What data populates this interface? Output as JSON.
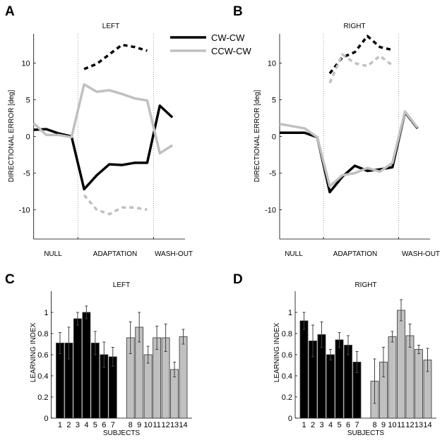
{
  "colors": {
    "cw": "#000000",
    "ccw": "#c0c0c0"
  },
  "chart_data": [
    {
      "type": "line",
      "panel_label": "A",
      "title": "LEFT",
      "ylabel": "DIRECTIONAL ERROR [deg]",
      "ylim": [
        -14,
        14
      ],
      "yticks": [
        -10,
        -5,
        0,
        5,
        10
      ],
      "xlim": [
        1,
        13
      ],
      "phase_boundaries": [
        4.5,
        10.5
      ],
      "phase_labels": [
        "NULL",
        "ADAPTATION",
        "WASH-OUT"
      ],
      "legend": [
        "CW-CW",
        "CCW-CW"
      ],
      "legend_position": "top-right",
      "series": [
        {
          "name": "CW-CW",
          "style": "solid",
          "x": [
            1,
            2,
            3,
            4,
            5,
            6,
            7,
            8,
            9,
            10,
            11,
            12
          ],
          "values": [
            0.9,
            1.0,
            0.4,
            0.0,
            -7.2,
            -5.3,
            -3.8,
            -3.9,
            -3.6,
            -3.6,
            4.2,
            2.6
          ]
        },
        {
          "name": "CCW-CW",
          "style": "solid",
          "x": [
            1,
            2,
            3,
            4,
            5,
            6,
            7,
            8,
            9,
            10,
            11,
            12
          ],
          "values": [
            1.8,
            0.2,
            0.2,
            -0.1,
            7.1,
            6.1,
            6.3,
            5.8,
            5.2,
            4.9,
            -2.3,
            -1.2
          ]
        },
        {
          "name": "CW-CW",
          "style": "dashed",
          "x": [
            5,
            6,
            7,
            8,
            9,
            10
          ],
          "values": [
            9.2,
            9.9,
            11.2,
            12.5,
            12.2,
            11.7
          ]
        },
        {
          "name": "CCW-CW",
          "style": "dashed",
          "x": [
            5,
            6,
            7,
            8,
            9,
            10
          ],
          "values": [
            -8.0,
            -10.0,
            -10.6,
            -9.7,
            -9.7,
            -10.0
          ]
        }
      ]
    },
    {
      "type": "line",
      "panel_label": "B",
      "title": "RIGHT",
      "ylabel": "DIRECTIONAL ERROR [deg]",
      "ylim": [
        -14,
        14
      ],
      "yticks": [
        -10,
        -5,
        0,
        5,
        10
      ],
      "xlim": [
        1,
        13
      ],
      "phase_boundaries": [
        4.5,
        10.5
      ],
      "phase_labels": [
        "NULL",
        "ADAPTATION",
        "WASH-OUT"
      ],
      "series": [
        {
          "name": "CW-CW",
          "style": "solid",
          "x": [
            1,
            2,
            3,
            4,
            5,
            6,
            7,
            8,
            9,
            10,
            11,
            12
          ],
          "values": [
            0.5,
            0.5,
            0.5,
            -0.1,
            -7.6,
            -5.5,
            -4.0,
            -4.7,
            -4.5,
            -4.2,
            3.3,
            1.1
          ]
        },
        {
          "name": "CCW-CW",
          "style": "solid",
          "x": [
            1,
            2,
            3,
            4,
            5,
            6,
            7,
            8,
            9,
            10,
            11,
            12
          ],
          "values": [
            1.7,
            1.4,
            1.1,
            -0.1,
            -6.8,
            -5.3,
            -5.0,
            -4.3,
            -4.8,
            -3.6,
            3.4,
            1.2
          ]
        },
        {
          "name": "CW-CW",
          "style": "dashed",
          "x": [
            5,
            6,
            7,
            8,
            9,
            10
          ],
          "values": [
            8.6,
            10.8,
            11.5,
            13.7,
            12.2,
            11.8
          ]
        },
        {
          "name": "CCW-CW",
          "style": "dashed",
          "x": [
            5,
            6,
            7,
            8,
            9,
            10
          ],
          "values": [
            7.3,
            11.2,
            10.0,
            9.6,
            11.0,
            9.7
          ]
        }
      ]
    },
    {
      "type": "bar",
      "panel_label": "C",
      "title": "LEFT",
      "xlabel": "SUBJECTS",
      "ylabel": "LEARNING INDEX",
      "ylim": [
        0,
        1.2
      ],
      "yticks": [
        0,
        0.2,
        0.4,
        0.6,
        0.8,
        1
      ],
      "categories": [
        "1",
        "2",
        "3",
        "4",
        "5",
        "6",
        "7",
        "8",
        "9",
        "10",
        "11",
        "12",
        "13",
        "14"
      ],
      "values": [
        0.71,
        0.71,
        0.94,
        1.0,
        0.71,
        0.6,
        0.58,
        0.76,
        0.86,
        0.6,
        0.76,
        0.76,
        0.46,
        0.77
      ],
      "errors": [
        0.1,
        0.15,
        0.06,
        0.06,
        0.11,
        0.12,
        0.09,
        0.15,
        0.14,
        0.08,
        0.11,
        0.13,
        0.07,
        0.07
      ],
      "groups": [
        "cw",
        "cw",
        "cw",
        "cw",
        "cw",
        "cw",
        "cw",
        "ccw",
        "ccw",
        "ccw",
        "ccw",
        "ccw",
        "ccw",
        "ccw"
      ]
    },
    {
      "type": "bar",
      "panel_label": "D",
      "title": "RIGHT",
      "xlabel": "SUBJECTS",
      "ylabel": "LEARNING INDEX",
      "ylim": [
        0,
        1.2
      ],
      "yticks": [
        0,
        0.2,
        0.4,
        0.6,
        0.8,
        1
      ],
      "categories": [
        "1",
        "2",
        "3",
        "4",
        "5",
        "6",
        "7",
        "8",
        "9",
        "10",
        "11",
        "12",
        "13",
        "14"
      ],
      "values": [
        0.92,
        0.73,
        0.79,
        0.6,
        0.74,
        0.69,
        0.53,
        0.35,
        0.53,
        0.77,
        1.02,
        0.78,
        0.65,
        0.55
      ],
      "errors": [
        0.08,
        0.15,
        0.12,
        0.05,
        0.07,
        0.09,
        0.1,
        0.21,
        0.14,
        0.05,
        0.1,
        0.11,
        0.04,
        0.11
      ],
      "groups": [
        "cw",
        "cw",
        "cw",
        "cw",
        "cw",
        "cw",
        "cw",
        "ccw",
        "ccw",
        "ccw",
        "ccw",
        "ccw",
        "ccw",
        "ccw"
      ]
    }
  ]
}
